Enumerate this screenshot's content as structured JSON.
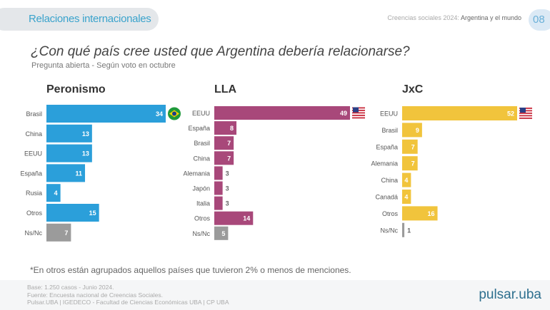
{
  "header": {
    "section": "Relaciones internacionales",
    "report_light": "Creencias sociales 2024:",
    "report_bold": "Argentina y el mundo",
    "page": "08"
  },
  "title": "¿Con qué país cree usted que Argentina debería relacionarse?",
  "subtitle": "Pregunta abierta - Según voto en octubre",
  "chart_data": [
    {
      "type": "bar",
      "orientation": "horizontal",
      "title": "Peronismo",
      "color": "#2b9fda",
      "categories": [
        "Brasil",
        "China",
        "EEUU",
        "España",
        "Rusia",
        "Otros",
        "Ns/Nc"
      ],
      "values": [
        34,
        13,
        13,
        11,
        4,
        15,
        7
      ],
      "flag": "brazil-flag-icon"
    },
    {
      "type": "bar",
      "orientation": "horizontal",
      "title": "LLA",
      "color": "#a8487a",
      "categories": [
        "EEUU",
        "España",
        "Brasil",
        "China",
        "Alemania",
        "Japón",
        "Italia",
        "Otros",
        "Ns/Nc"
      ],
      "values": [
        49,
        8,
        7,
        7,
        3,
        3,
        3,
        14,
        5
      ],
      "flag": "usa-flag-icon"
    },
    {
      "type": "bar",
      "orientation": "horizontal",
      "title": "JxC",
      "color": "#f1c43c",
      "categories": [
        "EEUU",
        "Brasil",
        "España",
        "Alemania",
        "China",
        "Canadá",
        "Otros",
        "Ns/Nc"
      ],
      "values": [
        52,
        9,
        7,
        7,
        4,
        4,
        16,
        1
      ],
      "flag": "usa-flag-icon"
    }
  ],
  "nsnc_color": "#9b9b9b",
  "note": "*En otros están agrupados aquellos países que tuvieron 2% o menos de menciones.",
  "footer": {
    "line1": "Base: 1.250 casos - Junio 2024.",
    "line2": "Fuente: Encuesta nacional de Creencias Sociales.",
    "line3": "Pulsar.UBA | IGEDECO - Facultad de Ciencias Económicas UBA | CP UBA",
    "logo": "pulsar.uba"
  }
}
